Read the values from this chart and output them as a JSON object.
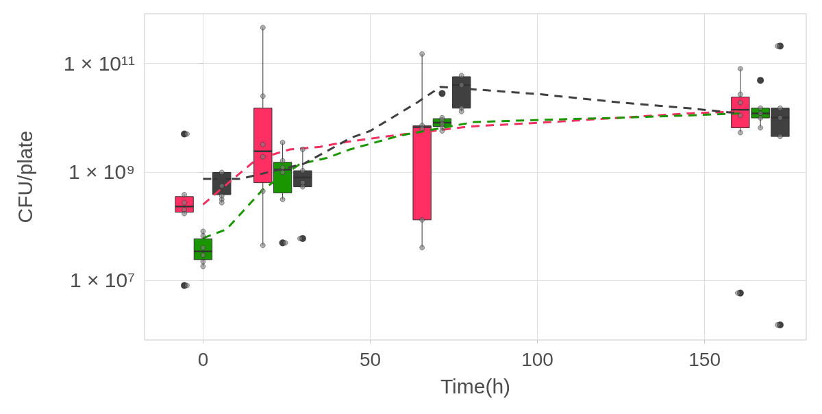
{
  "chart_data": {
    "type": "box",
    "xlabel": "Time(h)",
    "ylabel": "CFU/plate",
    "xlim": [
      -17.5,
      180.4
    ],
    "xticks": [
      0,
      50,
      100,
      150
    ],
    "ylim": [
      790000,
      830000000000
    ],
    "log": "y",
    "yticks": [
      {
        "value": 10000000,
        "label": "1 × 10⁷"
      },
      {
        "value": 1000000000,
        "label": "1 × 10⁹"
      },
      {
        "value": 100000000000,
        "label": "1 × 10¹¹"
      }
    ],
    "grid": true,
    "line_style": "dashed",
    "series": [
      {
        "type": "box",
        "color": "#ff2e63",
        "x": [
          -5.6,
          17.9,
          65.5,
          160.7
        ],
        "boxes": [
          {
            "low": 170000000,
            "q1": 180000000,
            "median": 230000000,
            "q3": 350000000,
            "high": 380000000,
            "outliers": [
              5000000000,
              8000000
            ]
          },
          {
            "low": 44000000,
            "q1": 630000000,
            "median": 2400000000,
            "q3": 15000000000,
            "high": 460000000000
          },
          {
            "low": 40000000,
            "q1": 130000000,
            "median": 6700000000,
            "q3": 7100000000,
            "high": 150000000000
          },
          {
            "low": 5300000000,
            "q1": 6500000000,
            "median": 14000000000,
            "q3": 24000000000,
            "high": 80000000000,
            "outliers": [
              5800000
            ]
          }
        ]
      },
      {
        "type": "box",
        "color": "#1a9600",
        "x": [
          0,
          23.8,
          71.5,
          166.7
        ],
        "boxes": [
          {
            "low": 18000000,
            "q1": 24000000,
            "median": 34000000,
            "q3": 58000000,
            "high": 80000000
          },
          {
            "low": 310000000,
            "q1": 410000000,
            "median": 1100000000,
            "q3": 1500000000,
            "high": 3500000000,
            "outliers": [
              49000000
            ]
          },
          {
            "low": 5700000000,
            "q1": 6900000000,
            "median": 8100000000,
            "q3": 9600000000,
            "high": 10000000000,
            "outliers": [
              28000000000
            ]
          },
          {
            "low": 6500000000,
            "q1": 9900000000,
            "median": 12000000000,
            "q3": 15000000000,
            "high": 15000000000,
            "outliers": [
              49000000000
            ]
          }
        ]
      },
      {
        "type": "box",
        "color": "#404040",
        "x": [
          5.6,
          29.8,
          77.3,
          172.6
        ],
        "boxes": [
          {
            "low": 270000000,
            "q1": 380000000,
            "median": 740000000,
            "q3": 980000000,
            "high": 980000000
          },
          {
            "low": 510000000,
            "q1": 530000000,
            "median": 790000000,
            "q3": 1050000000,
            "high": 2600000000,
            "outliers": [
              59000000
            ]
          },
          {
            "low": 13000000000,
            "q1": 15000000000,
            "median": 40000000000,
            "q3": 57000000000,
            "high": 60000000000
          },
          {
            "low": 4500000000,
            "q1": 4500000000,
            "median": 10000000000,
            "q3": 15000000000,
            "high": 15000000000,
            "outliers": [
              210000000000,
              1500000
            ]
          }
        ]
      },
      {
        "type": "line",
        "color": "#f03060",
        "marker": "none",
        "x": [
          0,
          8,
          16,
          26,
          35,
          42,
          57,
          80,
          101,
          125,
          145,
          160.5
        ],
        "values": [
          250000000,
          660000000,
          1700000000,
          2600000000,
          2900000000,
          3500000000,
          4700000000,
          6900000000,
          8100000000,
          10000000000,
          12000000000,
          13000000000
        ]
      },
      {
        "type": "line",
        "color": "#1a9600",
        "marker": "none",
        "x": [
          0,
          7,
          18,
          29,
          37,
          44,
          59,
          81,
          101,
          125,
          145,
          160.5
        ],
        "values": [
          60000000,
          87000000,
          480000000,
          1400000000,
          1800000000,
          2600000000,
          4700000000,
          8300000000,
          9100000000,
          10000000000,
          11000000000,
          12000000000
        ]
      },
      {
        "type": "line",
        "color": "#404040",
        "marker": "none",
        "x": [
          0,
          11,
          30,
          37,
          44,
          50,
          64,
          71,
          85,
          101,
          125,
          145,
          160.5
        ],
        "values": [
          740000000,
          740000000,
          1400000000,
          2400000000,
          4200000000,
          5700000000,
          19000000000,
          37000000000,
          32000000000,
          27000000000,
          19000000000,
          15000000000,
          12000000000
        ]
      },
      {
        "type": "scatter",
        "color": "#808080",
        "marker": "circle",
        "x": [
          -5.6,
          -5.6,
          -5.6,
          -5.6,
          -4.8,
          -4.8,
          0,
          0,
          0,
          0,
          0,
          0,
          5.6,
          5.6,
          5.6,
          5.6,
          5.6,
          17.9,
          17.9,
          17.9,
          17.9,
          17.9,
          17.9,
          23.8,
          23.8,
          23.8,
          23.8,
          23.8,
          24.6,
          29.8,
          29.8,
          29.8,
          29.8,
          29.0,
          65.5,
          65.5,
          65.5,
          65.5,
          65.5,
          71.5,
          71.5,
          71.5,
          71.5,
          71.5,
          77.3,
          77.3,
          77.3,
          77.3,
          160.7,
          160.7,
          160.7,
          160.7,
          160.7,
          159.9,
          166.7,
          166.7,
          166.7,
          166.7,
          171.8,
          172.6,
          172.6,
          172.6,
          171.8
        ],
        "values": [
          380000000,
          270000000,
          200000000,
          170000000,
          5000000000,
          8000000,
          80000000,
          66000000,
          40000000,
          29000000,
          22000000,
          18000000,
          980000000,
          550000000,
          360000000,
          310000000,
          270000000,
          460000000000,
          25000000000,
          3200000000,
          1900000000,
          440000000,
          44000000,
          3500000000,
          1600000000,
          1200000000,
          980000000,
          310000000,
          49000000,
          2600000000,
          1050000000,
          630000000,
          530000000,
          59000000,
          150000000000,
          7200000000,
          6300000000,
          130000000,
          40000000,
          10000000000,
          9100000000,
          7700000000,
          6700000000,
          5700000000,
          60000000000,
          40000000000,
          15000000000,
          13000000000,
          80000000000,
          27000000000,
          19000000000,
          11000000000,
          5300000000,
          5800000,
          15000000000,
          12000000000,
          9900000000,
          6500000000,
          210000000000,
          15000000000,
          10000000000,
          4500000000,
          1500000
        ]
      }
    ]
  }
}
